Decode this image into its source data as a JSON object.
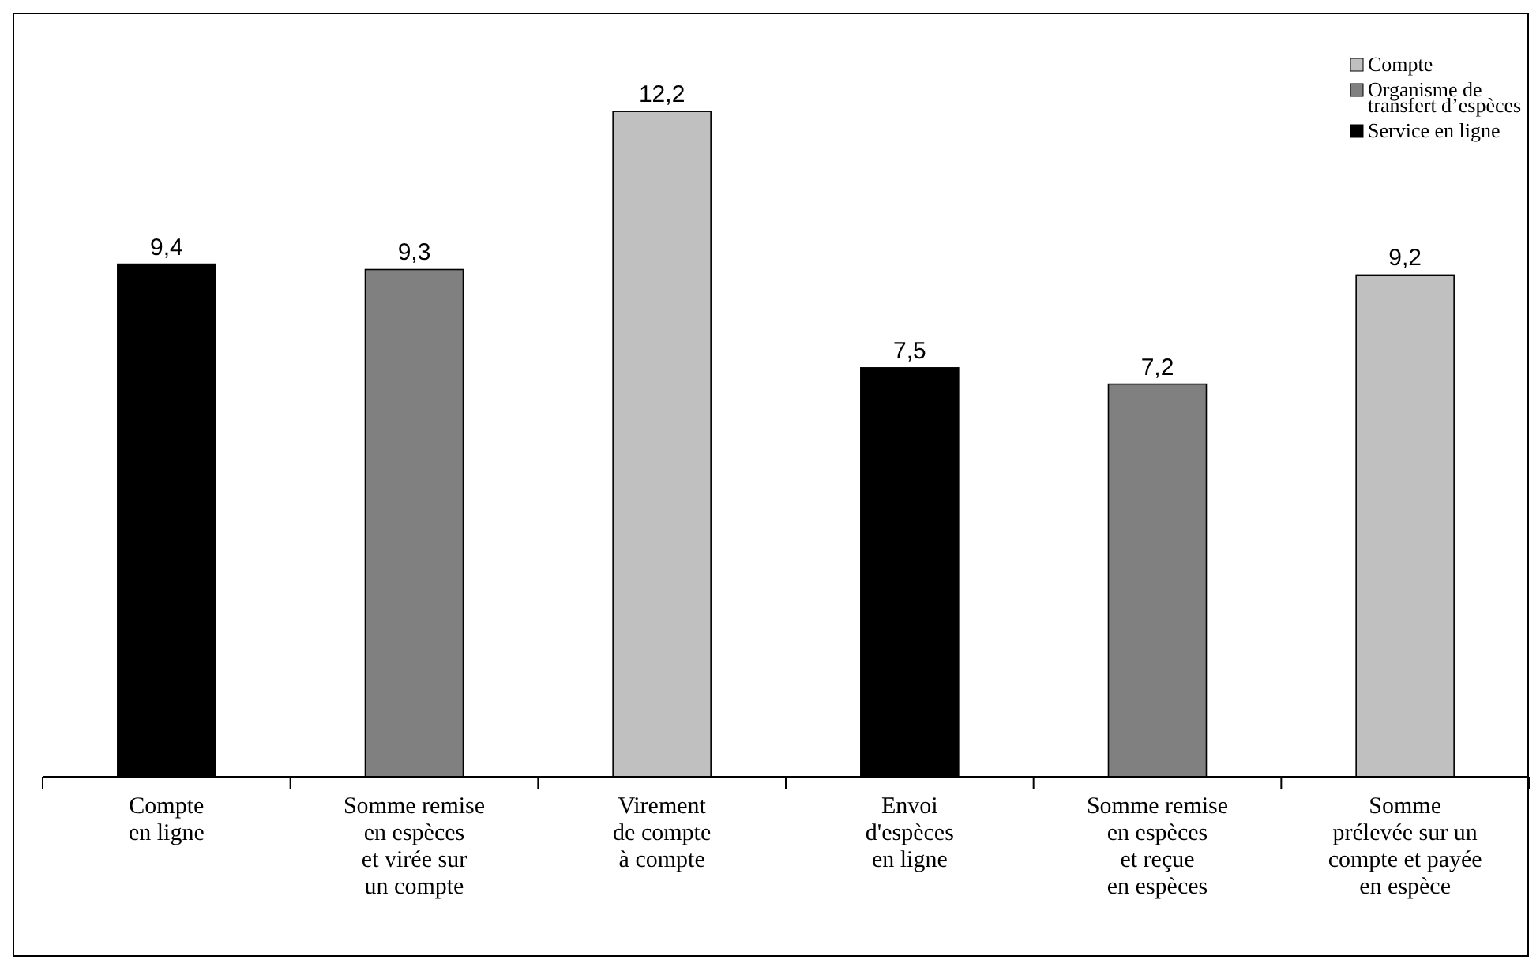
{
  "chart_data": {
    "type": "bar",
    "stacked": true,
    "legend": "top right",
    "categories": [
      "Compte\nen ligne",
      "Somme remise\nen espèces\net virée sur\nun compte",
      "Virement\nde compte\nà compte",
      "Envoi\nd'espèces\nen ligne",
      "Somme remise\nen espèces\net reçue\nen espèces",
      "Somme\nprélevée sur un\ncompte et payée\nen espèce"
    ],
    "series": [
      {
        "name": "Compte",
        "color": "#c0c0c0",
        "values": [
          null,
          null,
          12.2,
          null,
          null,
          9.2
        ],
        "value_labels": [
          null,
          null,
          "12,2",
          null,
          null,
          "9,2"
        ]
      },
      {
        "name": "Organisme de transfert d’espèces",
        "color": "#808080",
        "values": [
          null,
          9.3,
          null,
          null,
          7.2,
          null
        ],
        "value_labels": [
          null,
          "9,3",
          null,
          null,
          "7,2",
          null
        ]
      },
      {
        "name": "Service en ligne",
        "color": "#000000",
        "values": [
          9.4,
          null,
          null,
          7.5,
          null,
          null
        ],
        "value_labels": [
          "9,4",
          null,
          null,
          "7,5",
          null,
          null
        ]
      }
    ]
  }
}
